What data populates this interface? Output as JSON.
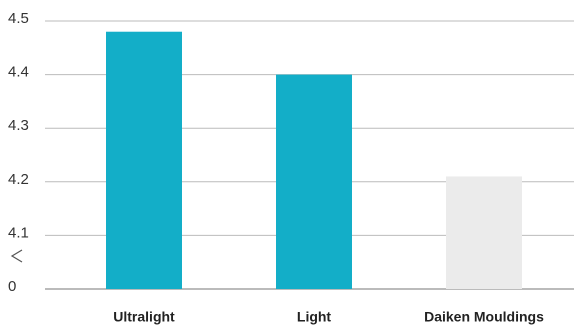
{
  "chart_data": {
    "type": "bar",
    "categories": [
      "Ultralight",
      "Light",
      "Daiken Mouldings"
    ],
    "values": [
      4.48,
      4.4,
      4.21
    ],
    "colors": [
      "#13aec8",
      "#13aec8",
      "#ebebeb"
    ],
    "ylim": [
      0,
      4.5
    ],
    "axis_break": {
      "from": 0,
      "to": 4.0
    },
    "yticks": [
      0,
      4.1,
      4.2,
      4.3,
      4.4,
      4.5
    ],
    "grid": true
  }
}
